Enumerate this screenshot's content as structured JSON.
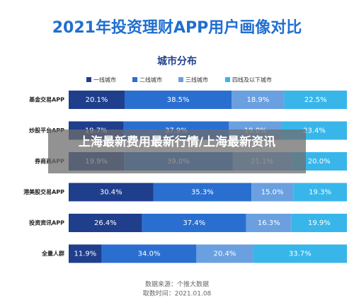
{
  "chart_data": {
    "type": "stacked_bar",
    "title": "2021年投资理财APP用户画像对比",
    "subtitle": "城市分布",
    "categories": [
      "基金交易APP",
      "炒股平台APP",
      "券商商APP",
      "港美股交易APP",
      "投资资讯APP",
      "全量人群"
    ],
    "series": [
      {
        "name": "一线城市",
        "color": "#1f3e8c",
        "values": [
          20.1,
          19.7,
          19.9,
          30.4,
          26.4,
          11.9
        ],
        "value_labels": [
          "20.1%",
          "19.7%",
          "19.9%",
          "30.4%",
          "26.4%",
          "11.9%"
        ]
      },
      {
        "name": "二线城市",
        "color": "#2a6fd0",
        "values": [
          38.5,
          37.9,
          39.0,
          35.3,
          37.4,
          34.0
        ],
        "value_labels": [
          "38.5%",
          "37.9%",
          "39.0%",
          "35.3%",
          "37.4%",
          "34.0%"
        ]
      },
      {
        "name": "三线城市",
        "color": "#6aa0e0",
        "values": [
          18.9,
          19.0,
          21.1,
          15.0,
          16.3,
          20.4
        ],
        "value_labels": [
          "18.9%",
          "19.0%",
          "21.1%",
          "15.0%",
          "16.3%",
          "20.4%"
        ]
      },
      {
        "name": "四线及以下城市",
        "color": "#38b6ea",
        "values": [
          22.5,
          23.4,
          20.0,
          19.3,
          19.9,
          33.7
        ],
        "value_labels": [
          "22.5%",
          "23.4%",
          "20.0%",
          "19.3%",
          "19.9%",
          "33.7%"
        ]
      }
    ],
    "source": "数据来源：个推大数据",
    "date": "取数时间：2021.01.08"
  },
  "overlay": {
    "text": "上海最新费用最新行情/上海最新资讯"
  }
}
